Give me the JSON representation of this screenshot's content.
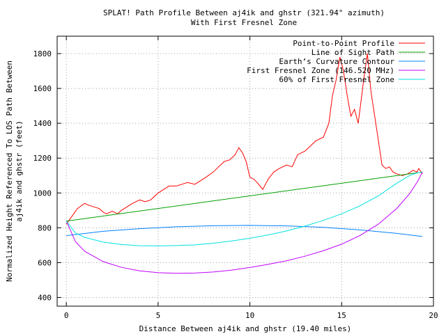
{
  "chart_data": {
    "type": "line",
    "title_lines": [
      "SPLAT! Path Profile Between aj4ik and ghstr (321.94° azimuth)",
      "With First Fresnel Zone"
    ],
    "xlabel": "Distance Between aj4ik and ghstr (19.40 miles)",
    "ylabel_lines": [
      "Normalized Height Referenced To LOS Path Between",
      "aj4ik and ghstr (feet)"
    ],
    "xlim": [
      -0.5,
      20
    ],
    "ylim": [
      350,
      1900
    ],
    "x_ticks": [
      0,
      5,
      10,
      15,
      20
    ],
    "y_ticks": [
      400,
      600,
      800,
      1000,
      1200,
      1400,
      1600,
      1800
    ],
    "grid": true,
    "legend_position": "top-right",
    "path_length_miles": 19.4,
    "series": [
      {
        "name": "Point-to-Point Profile",
        "color": "#ff0000",
        "x": [
          0,
          0.2,
          0.4,
          0.6,
          0.8,
          1.0,
          1.2,
          1.5,
          1.8,
          2.0,
          2.2,
          2.5,
          2.8,
          3.0,
          3.3,
          3.6,
          4.0,
          4.3,
          4.6,
          5.0,
          5.3,
          5.6,
          6.0,
          6.3,
          6.6,
          7.0,
          7.3,
          7.6,
          8.0,
          8.3,
          8.6,
          8.9,
          9.2,
          9.4,
          9.6,
          9.8,
          10.0,
          10.2,
          10.4,
          10.7,
          11.0,
          11.3,
          11.6,
          12.0,
          12.3,
          12.6,
          13.0,
          13.3,
          13.6,
          14.0,
          14.3,
          14.5,
          14.7,
          14.9,
          15.1,
          15.3,
          15.5,
          15.7,
          15.9,
          16.0,
          16.2,
          16.4,
          16.6,
          16.8,
          17.0,
          17.2,
          17.4,
          17.6,
          17.8,
          18.0,
          18.3,
          18.6,
          18.9,
          19.1,
          19.2,
          19.4
        ],
        "values": [
          820,
          850,
          880,
          910,
          925,
          940,
          930,
          920,
          910,
          890,
          880,
          895,
          880,
          900,
          920,
          940,
          960,
          950,
          960,
          1000,
          1020,
          1040,
          1040,
          1050,
          1060,
          1050,
          1070,
          1090,
          1120,
          1150,
          1180,
          1190,
          1220,
          1260,
          1230,
          1180,
          1090,
          1080,
          1060,
          1020,
          1080,
          1120,
          1140,
          1160,
          1150,
          1220,
          1240,
          1270,
          1300,
          1320,
          1400,
          1560,
          1650,
          1780,
          1700,
          1560,
          1440,
          1480,
          1400,
          1480,
          1650,
          1800,
          1580,
          1440,
          1300,
          1160,
          1140,
          1150,
          1120,
          1110,
          1100,
          1110,
          1130,
          1120,
          1140,
          1110
        ]
      },
      {
        "name": "Line of Sight Path",
        "color": "#00a000",
        "x": [
          0,
          19.4
        ],
        "values": [
          838,
          1120
        ]
      },
      {
        "name": "Earth's Curvature Contour",
        "color": "#0080ff",
        "x": [
          0,
          2,
          4,
          6,
          8,
          10,
          12,
          14,
          16,
          18,
          19.4
        ],
        "values": [
          755,
          780,
          795,
          806,
          812,
          814,
          811,
          803,
          788,
          768,
          750
        ]
      },
      {
        "name": "First Fresnel Zone (146.520 MHz)",
        "color": "#c000ff",
        "x": [
          0,
          0.5,
          1,
          2,
          3,
          4,
          5,
          6,
          7,
          8,
          9,
          10,
          11,
          12,
          13,
          14,
          15,
          16,
          17,
          18,
          18.7,
          19.1,
          19.4
        ],
        "values": [
          838,
          720,
          665,
          606,
          573,
          553,
          542,
          539,
          540,
          546,
          557,
          572,
          590,
          611,
          637,
          668,
          706,
          756,
          821,
          911,
          996,
          1060,
          1120
        ]
      },
      {
        "name": "60% of First Fresnel Zone",
        "color": "#00e0e0",
        "x": [
          0,
          0.5,
          1,
          2,
          3,
          4,
          5,
          6,
          7,
          8,
          9,
          10,
          11,
          12,
          13,
          14,
          15,
          16,
          17,
          18,
          18.7,
          19.1,
          19.4
        ],
        "values": [
          838,
          770,
          745,
          718,
          704,
          697,
          696,
          698,
          702,
          711,
          724,
          740,
          759,
          782,
          810,
          842,
          880,
          926,
          983,
          1056,
          1100,
          1115,
          1120
        ]
      }
    ],
    "legend": [
      "Point-to-Point Profile",
      "Line of Sight Path",
      "Earth’s Curvature Contour",
      "First Fresnel Zone (146.520 MHz)",
      "60% of First Fresnel Zone"
    ]
  }
}
